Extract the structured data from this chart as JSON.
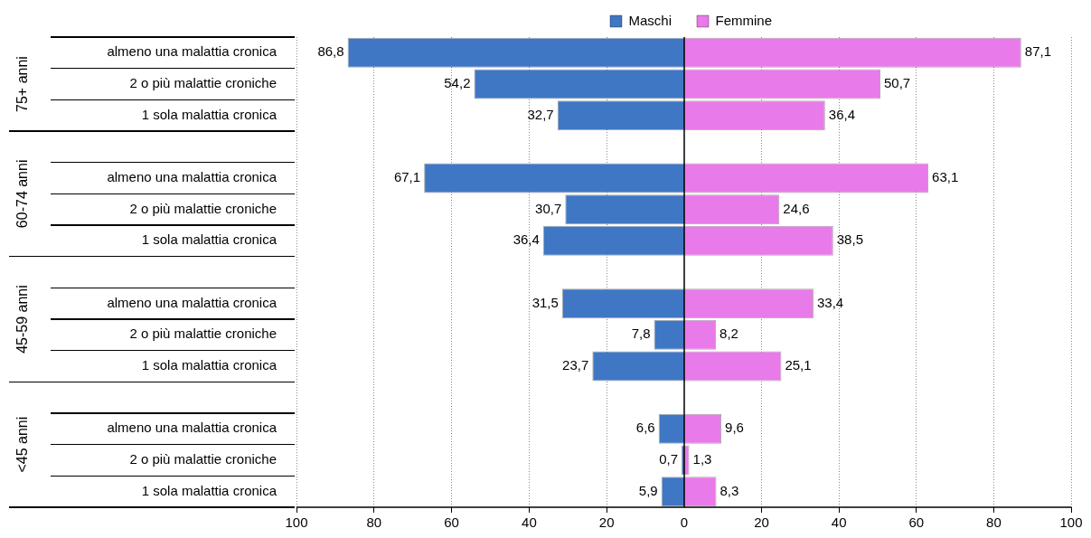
{
  "chart_data": [
    {
      "type": "bar",
      "orientation": "horizontal",
      "categories": [
        "almeno una malattia cronica",
        "2 o più malattie croniche",
        "1 sola malattia cronica",
        null,
        "almeno una malattia cronica",
        "2 o più malattie croniche",
        "1 sola malattia cronica",
        null,
        "almeno una malattia cronica",
        "2 o più malattie croniche",
        "1 sola malattia cronica",
        null,
        "almeno una malattia cronica",
        "2 o più malattie croniche",
        "1 sola malattia cronica"
      ],
      "series": [
        {
          "name": "Maschi",
          "color": "#3f77c4",
          "values": [
            86.8,
            54.2,
            32.7,
            null,
            67.1,
            30.7,
            36.4,
            null,
            31.5,
            7.8,
            23.7,
            null,
            6.6,
            0.7,
            5.9
          ],
          "value_labels": [
            "86,8",
            "54,2",
            "32,7",
            null,
            "67,1",
            "30,7",
            "36,4",
            null,
            "31,5",
            "7,8",
            "23,7",
            null,
            "6,6",
            "0,7",
            "5,9"
          ]
        }
      ],
      "annotations": [
        "75+ anni",
        "60-74 anni",
        "45-59 anni",
        "<45 anni"
      ],
      "xlim": [
        100,
        0
      ],
      "xticks": [
        100,
        80,
        60,
        40,
        20
      ],
      "grid": "x",
      "legend": "top right"
    },
    {
      "type": "bar",
      "orientation": "horizontal",
      "series": [
        {
          "name": "Femmine",
          "color": "#e97ae9",
          "values": [
            87.1,
            50.7,
            36.4,
            null,
            63.1,
            24.6,
            38.5,
            null,
            33.4,
            8.2,
            25.1,
            null,
            9.6,
            1.3,
            8.3
          ],
          "value_labels": [
            "87,1",
            "50,7",
            "36,4",
            null,
            "63,1",
            "24,6",
            "38,5",
            null,
            "33,4",
            "8,2",
            "25,1",
            null,
            "9,6",
            "1,3",
            "8,3"
          ]
        }
      ],
      "xlim": [
        0,
        100
      ],
      "xticks": [
        0,
        20,
        40,
        60,
        80,
        100
      ],
      "grid": "x",
      "legend": "top left",
      "tick_labels": "x"
    }
  ]
}
